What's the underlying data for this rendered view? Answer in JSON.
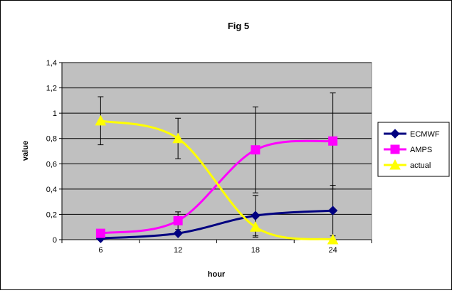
{
  "chart_data": {
    "type": "line",
    "title": "Fig 5",
    "xlabel": "hour",
    "ylabel": "value",
    "categories": [
      "6",
      "12",
      "18",
      "24"
    ],
    "ylim": [
      0,
      1.4
    ],
    "yticks": [
      "0",
      "0,2",
      "0,4",
      "0,6",
      "0,8",
      "1",
      "1,2",
      "1,4"
    ],
    "grid": true,
    "legend_position": "right",
    "plot_background": "#c0c0c0",
    "series": [
      {
        "name": "ECMWF",
        "color": "#000080",
        "marker": "diamond",
        "values": [
          0.01,
          0.05,
          0.19,
          0.23
        ],
        "error": [
          null,
          null,
          0.16,
          0.2
        ]
      },
      {
        "name": "AMPS",
        "color": "#ff00ff",
        "marker": "square",
        "values": [
          0.05,
          0.15,
          0.71,
          0.78
        ],
        "error": [
          null,
          0.07,
          0.34,
          0.38
        ]
      },
      {
        "name": "actual",
        "color": "#ffff00",
        "marker": "triangle",
        "values": [
          0.94,
          0.8,
          0.1,
          0.0
        ],
        "error": [
          0.19,
          0.16,
          0.08,
          null
        ]
      }
    ]
  }
}
